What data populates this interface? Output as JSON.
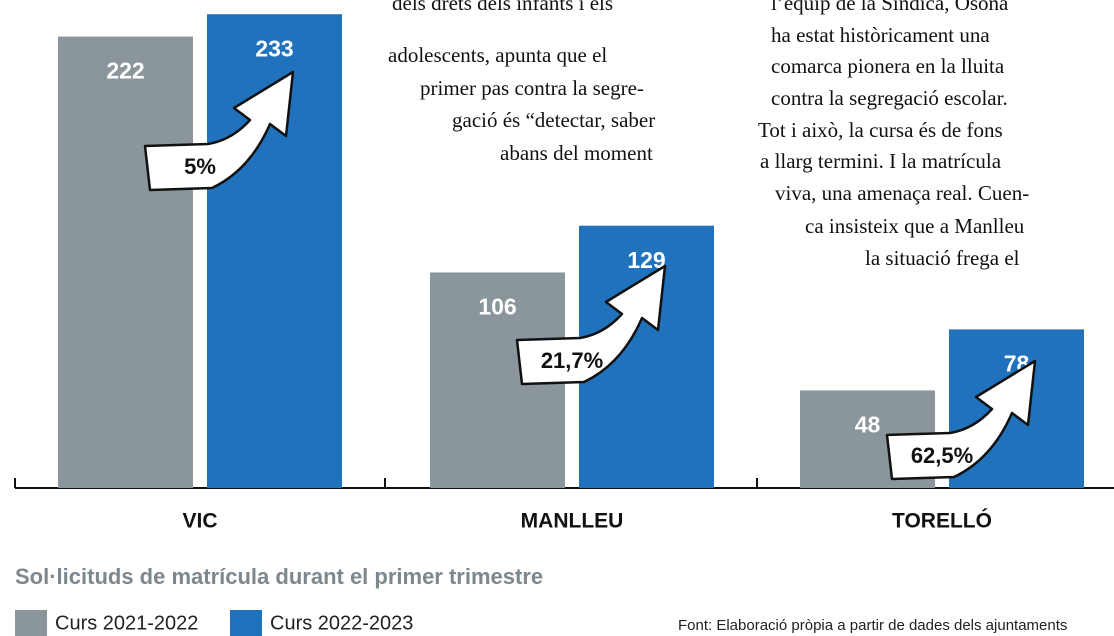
{
  "chart_data": {
    "type": "bar",
    "title": "Sol·licituds de matrícula durant el primer trimestre",
    "source": "Font: Elaboració pròpia a partir de dades dels ajuntaments",
    "categories": [
      "VIC",
      "MANLLEU",
      "TORELLÓ"
    ],
    "series": [
      {
        "name": "Curs 2021-2022",
        "color": "#8a959c",
        "values": [
          222,
          106,
          48
        ]
      },
      {
        "name": "Curs 2022-2023",
        "color": "#1f72bb",
        "values": [
          233,
          129,
          78
        ]
      }
    ],
    "change": {
      "values": [
        5,
        21.7,
        62.5
      ],
      "value_labels": [
        "5%",
        "21,7%",
        "62,5%"
      ]
    },
    "ylim": [
      0,
      240
    ],
    "text_columns": [
      [
        "dels drets dels infants i els",
        "adolescents, apunta que el",
        "primer pas contra la segre-",
        "gació és “detectar, saber",
        "abans del moment"
      ],
      [
        "l’equip de la Síndica, Osona",
        "ha estat històricament una",
        "comarca pionera en la lluita",
        "contra la segregació escolar.",
        "Tot i això, la cursa és de fons",
        "a llarg termini. I la matrícula",
        "viva, una amenaça real. Cuen-",
        "ca insisteix que a Manlleu",
        "la situació frega el"
      ]
    ]
  }
}
